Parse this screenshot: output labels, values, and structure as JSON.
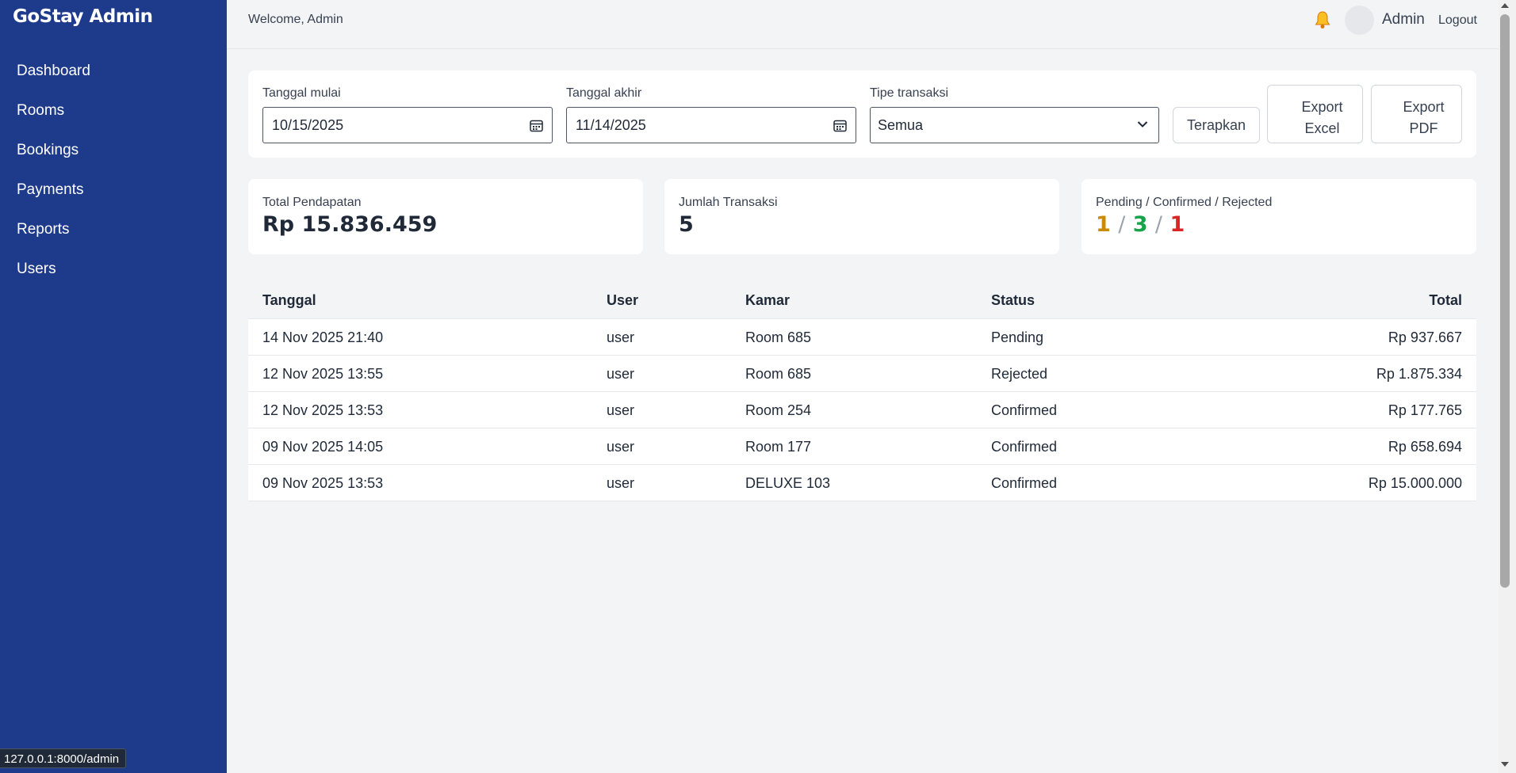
{
  "sidebar": {
    "brand": "GoStay Admin",
    "items": [
      {
        "label": "Dashboard"
      },
      {
        "label": "Rooms"
      },
      {
        "label": "Bookings"
      },
      {
        "label": "Payments"
      },
      {
        "label": "Reports"
      },
      {
        "label": "Users"
      }
    ]
  },
  "status_url": "127.0.0.1:8000/admin",
  "header": {
    "welcome": "Welcome, Admin",
    "bell_icon": "bell-icon",
    "user_name": "Admin",
    "logout_label": "Logout"
  },
  "filters": {
    "start_label": "Tanggal mulai",
    "start_value": "10/15/2025",
    "end_label": "Tanggal akhir",
    "end_value": "11/14/2025",
    "type_label": "Tipe transaksi",
    "type_value": "Semua",
    "apply_label": "Terapkan",
    "export_excel_line1": "Export",
    "export_excel_line2": "Excel",
    "export_pdf_line1": "Export",
    "export_pdf_line2": "PDF"
  },
  "stats": {
    "revenue_label": "Total Pendapatan",
    "revenue_value": "Rp 15.836.459",
    "count_label": "Jumlah Transaksi",
    "count_value": "5",
    "status_label": "Pending / Confirmed / Rejected",
    "pending": "1",
    "confirmed": "3",
    "rejected": "1",
    "separator": "/"
  },
  "table": {
    "headers": [
      "Tanggal",
      "User",
      "Kamar",
      "Status",
      "Total"
    ],
    "rows": [
      [
        "14 Nov 2025 21:40",
        "user",
        "Room 685",
        "Pending",
        "Rp 937.667"
      ],
      [
        "12 Nov 2025 13:55",
        "user",
        "Room 685",
        "Rejected",
        "Rp 1.875.334"
      ],
      [
        "12 Nov 2025 13:53",
        "user",
        "Room 254",
        "Confirmed",
        "Rp 177.765"
      ],
      [
        "09 Nov 2025 14:05",
        "user",
        "Room 177",
        "Confirmed",
        "Rp 658.694"
      ],
      [
        "09 Nov 2025 13:53",
        "user",
        "DELUXE 103",
        "Confirmed",
        "Rp 15.000.000"
      ]
    ]
  },
  "colors": {
    "sidebar": "#1e3a8a",
    "pending": "#ca8a04",
    "confirmed": "#16a34a",
    "rejected": "#dc2626"
  }
}
